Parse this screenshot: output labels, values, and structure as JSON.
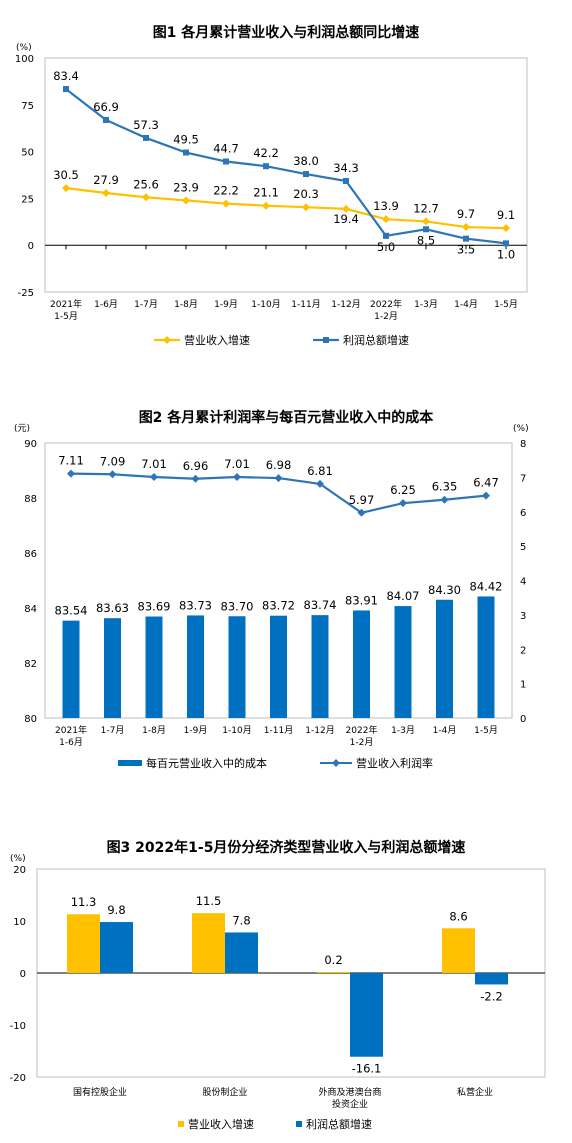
{
  "chart_data": [
    {
      "type": "line",
      "title": "图1  各月累计营业收入与利润总额同比增速",
      "yunit": "(%)",
      "ylim": [
        -25,
        100
      ],
      "yticks": [
        "100",
        "75",
        "50",
        "25",
        "0",
        "-25"
      ],
      "yticks_values": [
        100,
        75,
        50,
        25,
        0,
        -25
      ],
      "categories": [
        [
          "2021年",
          "1-5月"
        ],
        [
          "1-6月"
        ],
        [
          "1-7月"
        ],
        [
          "1-8月"
        ],
        [
          "1-9月"
        ],
        [
          "1-10月"
        ],
        [
          "1-11月"
        ],
        [
          "1-12月"
        ],
        [
          "2022年",
          "1-2月"
        ],
        [
          "1-3月"
        ],
        [
          "1-4月"
        ],
        [
          "1-5月"
        ]
      ],
      "series": [
        {
          "name": "营业收入增速",
          "color": "#FFC000",
          "values": [
            30.5,
            27.9,
            25.6,
            23.9,
            22.2,
            21.1,
            20.3,
            19.4,
            13.9,
            12.7,
            9.7,
            9.1
          ],
          "labels": [
            "30.5",
            "27.9",
            "25.6",
            "23.9",
            "22.2",
            "21.1",
            "20.3",
            "19.4",
            "13.9",
            "12.7",
            "9.7",
            "9.1"
          ]
        },
        {
          "name": "利润总额增速",
          "color": "#2E75B6",
          "values": [
            83.4,
            66.9,
            57.3,
            49.5,
            44.7,
            42.2,
            38.0,
            34.3,
            5.0,
            8.5,
            3.5,
            1.0
          ],
          "labels": [
            "83.4",
            "66.9",
            "57.3",
            "49.5",
            "44.7",
            "42.2",
            "38.0",
            "34.3",
            "5.0",
            "8.5",
            "3.5",
            "1.0"
          ]
        }
      ]
    },
    {
      "type": "bar+line",
      "title": "图2  各月累计利润率与每百元营业收入中的成本",
      "yunit_left": "(元)",
      "yunit_right": "(%)",
      "ylim_left": [
        80,
        90
      ],
      "yticks_left": [
        "90",
        "88",
        "86",
        "84",
        "82",
        "80"
      ],
      "yticks_left_values": [
        90,
        88,
        86,
        84,
        82,
        80
      ],
      "ylim_right": [
        0,
        8
      ],
      "yticks_right": [
        "8",
        "7",
        "6",
        "5",
        "4",
        "3",
        "2",
        "1",
        "0"
      ],
      "yticks_right_values": [
        8,
        7,
        6,
        5,
        4,
        3,
        2,
        1,
        0
      ],
      "categories": [
        [
          "2021年",
          "1-6月"
        ],
        [
          "1-7月"
        ],
        [
          "1-8月"
        ],
        [
          "1-9月"
        ],
        [
          "1-10月"
        ],
        [
          "1-11月"
        ],
        [
          "1-12月"
        ],
        [
          "2022年",
          "1-2月"
        ],
        [
          "1-3月"
        ],
        [
          "1-4月"
        ],
        [
          "1-5月"
        ]
      ],
      "bar_series": {
        "name": "每百元营业收入中的成本",
        "color": "#0070C0",
        "values": [
          83.54,
          83.63,
          83.69,
          83.73,
          83.7,
          83.72,
          83.74,
          83.91,
          84.07,
          84.3,
          84.42
        ],
        "labels": [
          "83.54",
          "83.63",
          "83.69",
          "83.73",
          "83.70",
          "83.72",
          "83.74",
          "83.91",
          "84.07",
          "84.30",
          "84.42"
        ]
      },
      "line_series": {
        "name": "营业收入利润率",
        "color": "#2E75B6",
        "values": [
          7.11,
          7.09,
          7.01,
          6.96,
          7.01,
          6.98,
          6.81,
          5.97,
          6.25,
          6.35,
          6.47
        ],
        "labels": [
          "7.11",
          "7.09",
          "7.01",
          "6.96",
          "7.01",
          "6.98",
          "6.81",
          "5.97",
          "6.25",
          "6.35",
          "6.47"
        ]
      }
    },
    {
      "type": "bar",
      "title": "图3  2022年1-5月份分经济类型营业收入与利润总额增速",
      "yunit": "(%)",
      "ylim": [
        -20,
        20
      ],
      "yticks": [
        "20",
        "10",
        "0",
        "-10",
        "-20"
      ],
      "yticks_values": [
        20,
        10,
        0,
        -10,
        -20
      ],
      "categories": [
        [
          "国有控股企业"
        ],
        [
          "股份制企业"
        ],
        [
          "外商及港澳台商",
          "投资企业"
        ],
        [
          "私营企业"
        ]
      ],
      "series": [
        {
          "name": "营业收入增速",
          "color": "#FFC000",
          "values": [
            11.3,
            11.5,
            0.2,
            8.6
          ],
          "labels": [
            "11.3",
            "11.5",
            "0.2",
            "8.6"
          ]
        },
        {
          "name": "利润总额增速",
          "color": "#0070C0",
          "values": [
            9.8,
            7.8,
            -16.1,
            -2.2
          ],
          "labels": [
            "9.8",
            "7.8",
            "-16.1",
            "-2.2"
          ]
        }
      ]
    }
  ]
}
